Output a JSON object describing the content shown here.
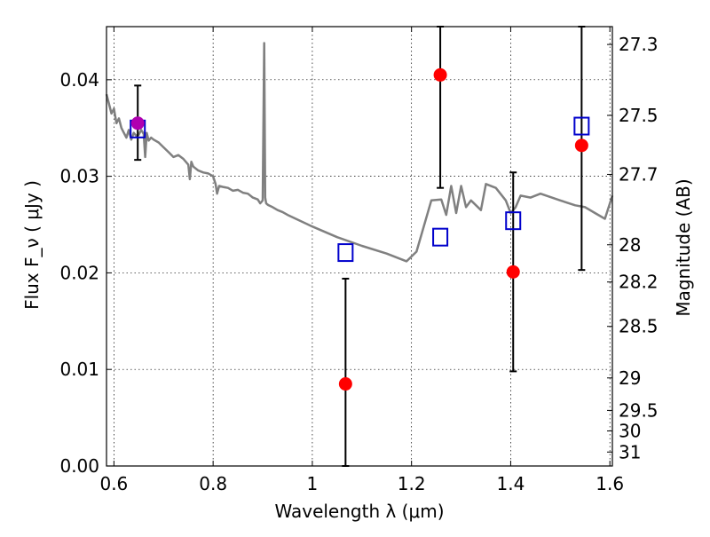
{
  "chart_data": {
    "type": "scatter",
    "xlabel": "Wavelength  λ (μm)",
    "ylabel": "Flux  F_ν  ( μJy )",
    "y2label": "Magnitude (AB)",
    "xlim": [
      0.585,
      1.605
    ],
    "ylim": [
      0.0,
      0.0455
    ],
    "grid": true,
    "x_ticks": [
      {
        "v": 0.6,
        "label": "0.6"
      },
      {
        "v": 0.8,
        "label": "0.8"
      },
      {
        "v": 1.0,
        "label": "1"
      },
      {
        "v": 1.2,
        "label": "1.2"
      },
      {
        "v": 1.4,
        "label": "1.4"
      },
      {
        "v": 1.6,
        "label": "1.6"
      }
    ],
    "y_ticks": [
      {
        "v": 0.0,
        "label": "0.00"
      },
      {
        "v": 0.01,
        "label": "0.01"
      },
      {
        "v": 0.02,
        "label": "0.02"
      },
      {
        "v": 0.03,
        "label": "0.03"
      },
      {
        "v": 0.04,
        "label": "0.04"
      }
    ],
    "y2_ticks": [
      {
        "mag": 27.3,
        "label": "27.3"
      },
      {
        "mag": 27.5,
        "label": "27.5"
      },
      {
        "mag": 27.7,
        "label": "27.7"
      },
      {
        "mag": 28.0,
        "label": "28"
      },
      {
        "mag": 28.2,
        "label": "28.2"
      },
      {
        "mag": 28.5,
        "label": "28.5"
      },
      {
        "mag": 29.0,
        "label": "29"
      },
      {
        "mag": 29.5,
        "label": "29.5"
      },
      {
        "mag": 30.0,
        "label": "30"
      },
      {
        "mag": 31.0,
        "label": "31"
      }
    ],
    "model_spectrum": {
      "color": "#808080",
      "x": [
        0.585,
        0.59,
        0.595,
        0.6,
        0.605,
        0.61,
        0.615,
        0.62,
        0.625,
        0.63,
        0.635,
        0.64,
        0.645,
        0.65,
        0.655,
        0.66,
        0.663,
        0.666,
        0.67,
        0.675,
        0.68,
        0.69,
        0.7,
        0.71,
        0.72,
        0.73,
        0.74,
        0.75,
        0.753,
        0.756,
        0.76,
        0.77,
        0.78,
        0.79,
        0.8,
        0.805,
        0.808,
        0.812,
        0.82,
        0.83,
        0.84,
        0.85,
        0.86,
        0.87,
        0.88,
        0.89,
        0.895,
        0.9,
        0.903,
        0.905,
        0.907,
        0.909,
        0.912,
        0.92,
        0.93,
        0.94,
        0.95,
        1.0,
        1.05,
        1.1,
        1.15,
        1.19,
        1.21,
        1.24,
        1.26,
        1.27,
        1.28,
        1.29,
        1.3,
        1.31,
        1.32,
        1.34,
        1.35,
        1.37,
        1.39,
        1.4,
        1.41,
        1.42,
        1.44,
        1.46,
        1.5,
        1.53,
        1.55,
        1.57,
        1.59,
        1.605
      ],
      "y": [
        0.0385,
        0.0375,
        0.0365,
        0.037,
        0.0355,
        0.036,
        0.035,
        0.0345,
        0.034,
        0.0348,
        0.0338,
        0.0345,
        0.0342,
        0.0343,
        0.0348,
        0.0344,
        0.032,
        0.0345,
        0.0337,
        0.034,
        0.0338,
        0.0335,
        0.033,
        0.0325,
        0.032,
        0.0322,
        0.0318,
        0.0312,
        0.0297,
        0.0315,
        0.031,
        0.0306,
        0.0304,
        0.0303,
        0.03,
        0.0292,
        0.0282,
        0.029,
        0.0289,
        0.0288,
        0.0285,
        0.0286,
        0.0283,
        0.0282,
        0.0278,
        0.0276,
        0.0272,
        0.0275,
        0.0438,
        0.0278,
        0.0272,
        0.0271,
        0.027,
        0.0268,
        0.0265,
        0.0263,
        0.026,
        0.0248,
        0.0237,
        0.0228,
        0.022,
        0.0212,
        0.0222,
        0.0275,
        0.0276,
        0.026,
        0.029,
        0.0262,
        0.029,
        0.0268,
        0.0275,
        0.0265,
        0.0292,
        0.0288,
        0.0275,
        0.0262,
        0.0268,
        0.028,
        0.0278,
        0.0282,
        0.0275,
        0.027,
        0.0268,
        0.0262,
        0.0256,
        0.028
      ]
    },
    "observed": {
      "color": "#ff0000",
      "points": [
        {
          "x": 0.648,
          "y": 0.0355,
          "yerr_low": 0.0317,
          "yerr_high": 0.0394,
          "color": "#b000b0"
        },
        {
          "x": 1.067,
          "y": 0.0085,
          "yerr_low": 0.0,
          "yerr_high": 0.0194
        },
        {
          "x": 1.258,
          "y": 0.0405,
          "yerr_low": 0.0288,
          "yerr_high": 0.0455
        },
        {
          "x": 1.405,
          "y": 0.0201,
          "yerr_low": 0.0098,
          "yerr_high": 0.0304
        },
        {
          "x": 1.543,
          "y": 0.0332,
          "yerr_low": 0.0203,
          "yerr_high": 0.0455
        }
      ]
    },
    "model_photometry": {
      "color": "#0000cc",
      "points": [
        {
          "x": 0.648,
          "y": 0.0349
        },
        {
          "x": 1.067,
          "y": 0.0221
        },
        {
          "x": 1.258,
          "y": 0.0237
        },
        {
          "x": 1.405,
          "y": 0.0254
        },
        {
          "x": 1.543,
          "y": 0.0352
        }
      ]
    }
  }
}
